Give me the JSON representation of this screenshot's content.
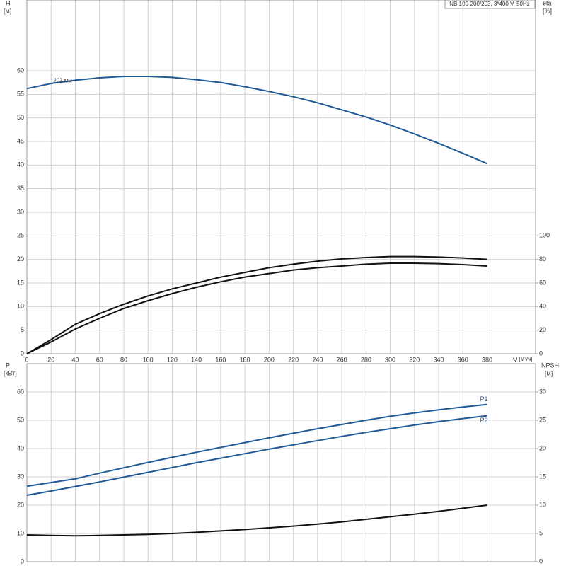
{
  "chart_data": [
    {
      "type": "line",
      "title": "NB 100-200/203, 3*400 V, 50Hz",
      "y_label": "H",
      "y_unit": "[м]",
      "y2_label": "eta",
      "y2_unit": "[%]",
      "x_label": "Q [м³/ч]",
      "annotation": "203 мм",
      "x": [
        0,
        20,
        40,
        60,
        80,
        100,
        120,
        140,
        160,
        180,
        200,
        220,
        240,
        260,
        280,
        300,
        320,
        340,
        360,
        380
      ],
      "xlim": [
        0,
        420
      ],
      "xticks": [
        0,
        20,
        40,
        60,
        80,
        100,
        120,
        140,
        160,
        180,
        200,
        220,
        240,
        260,
        280,
        300,
        320,
        340,
        360,
        380
      ],
      "ylim": [
        0,
        75
      ],
      "yticks": [
        0,
        5,
        10,
        15,
        20,
        25,
        30,
        35,
        40,
        45,
        50,
        55,
        60
      ],
      "y2lim": [
        0,
        300
      ],
      "y2ticks": [
        0,
        20,
        40,
        60,
        80,
        100
      ],
      "grid": true,
      "series": [
        {
          "color": "#1f5a96",
          "values": [
            56.2,
            57.3,
            58.0,
            58.5,
            58.8,
            58.8,
            58.6,
            58.1,
            57.5,
            56.6,
            55.6,
            54.5,
            53.2,
            51.7,
            50.2,
            48.5,
            46.6,
            44.6,
            42.5,
            40.3
          ]
        },
        {
          "color": "#111111",
          "axis": "y2",
          "values": [
            0,
            12,
            25,
            34,
            42,
            49,
            55,
            60,
            65,
            69,
            73,
            76,
            78.5,
            80.5,
            81.6,
            82.4,
            82.4,
            82,
            81.2,
            80
          ]
        },
        {
          "color": "#111111",
          "axis": "y2",
          "values": [
            0,
            10,
            21,
            30,
            38.4,
            45,
            51,
            56.4,
            61,
            65,
            68,
            71,
            73,
            74.4,
            76,
            76.8,
            76.8,
            76.4,
            75.6,
            74.4
          ]
        }
      ]
    },
    {
      "type": "line",
      "y_label": "P",
      "y_unit": "[кВт]",
      "y2_label": "NPSH",
      "y2_unit": "[м]",
      "x": [
        0,
        20,
        40,
        60,
        80,
        100,
        120,
        140,
        160,
        180,
        200,
        220,
        240,
        260,
        280,
        300,
        320,
        340,
        360,
        380
      ],
      "xlim": [
        0,
        420
      ],
      "ylim": [
        0,
        70
      ],
      "yticks": [
        0,
        10,
        20,
        30,
        40,
        50,
        60
      ],
      "y2lim": [
        0,
        35
      ],
      "y2ticks": [
        0,
        5,
        10,
        15,
        20,
        25,
        30
      ],
      "grid": true,
      "series": [
        {
          "name": "P1",
          "color": "#1f5a96",
          "values": [
            26.7,
            28.0,
            29.3,
            31.3,
            33.2,
            35.1,
            36.9,
            38.7,
            40.4,
            42.1,
            43.8,
            45.4,
            47,
            48.5,
            50,
            51.4,
            52.6,
            53.7,
            54.7,
            55.6
          ]
        },
        {
          "name": "P2",
          "color": "#1f5a96",
          "values": [
            23.5,
            25.0,
            26.6,
            28.2,
            29.9,
            31.6,
            33.3,
            35,
            36.6,
            38.2,
            39.8,
            41.3,
            42.8,
            44.3,
            45.7,
            47,
            48.3,
            49.5,
            50.6,
            51.6
          ]
        },
        {
          "color": "#111111",
          "axis": "y2",
          "values": [
            4.75,
            4.65,
            4.6,
            4.65,
            4.75,
            4.85,
            5,
            5.2,
            5.45,
            5.7,
            6,
            6.3,
            6.65,
            7.05,
            7.5,
            7.95,
            8.4,
            8.9,
            9.45,
            10
          ]
        }
      ]
    }
  ]
}
